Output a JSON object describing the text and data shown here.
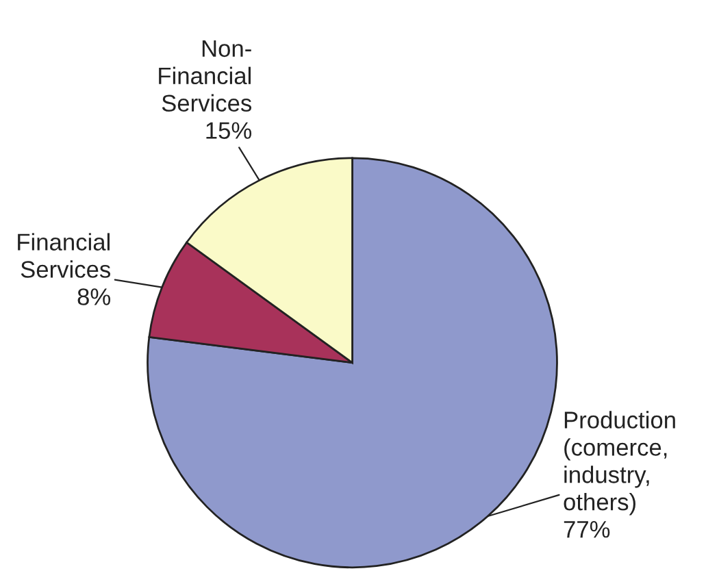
{
  "chart_data": {
    "type": "pie",
    "categories": [
      "Production\n(comerce,\nindustry,\nothers)",
      "Financial\nServices",
      "Non-\nFinancial\nServices"
    ],
    "values": [
      77,
      8,
      15
    ],
    "value_labels": [
      "77%",
      "8%",
      "15%"
    ],
    "colors": [
      "#8f99cc",
      "#a8325a",
      "#fafac8"
    ]
  }
}
